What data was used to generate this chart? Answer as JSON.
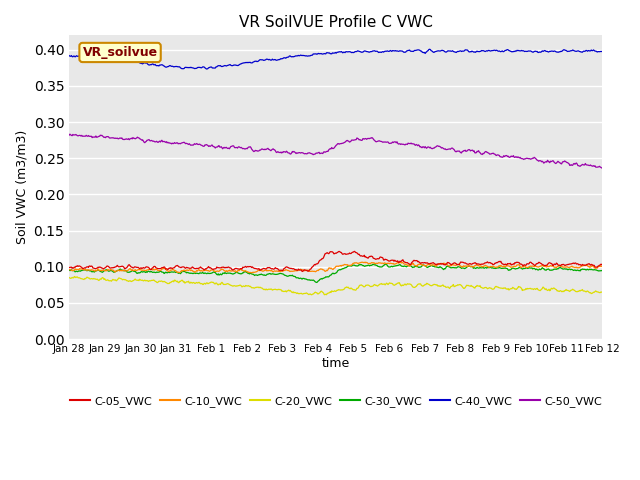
{
  "title": "VR SoilVUE Profile C VWC",
  "ylabel": "Soil VWC (m3/m3)",
  "xlabel": "time",
  "ylim": [
    0.0,
    0.42
  ],
  "yticks": [
    0.0,
    0.05,
    0.1,
    0.15,
    0.2,
    0.25,
    0.3,
    0.35,
    0.4
  ],
  "bg_color": "#e8e8e8",
  "fig_color": "#ffffff",
  "watermark_text": "VR_soilvue",
  "watermark_bg": "#ffffcc",
  "watermark_border": "#cc8800",
  "watermark_text_color": "#800000",
  "x_tick_labels": [
    "Jan 28",
    "Jan 29",
    "Jan 30",
    "Jan 31",
    "Feb 1",
    "Feb 2",
    "Feb 3",
    "Feb 4",
    "Feb 5",
    "Feb 6",
    "Feb 7",
    "Feb 8",
    "Feb 9",
    "Feb 10",
    "Feb 11",
    "Feb 12"
  ],
  "x_tick_positions": [
    0,
    1,
    2,
    3,
    4,
    5,
    6,
    7,
    8,
    9,
    10,
    11,
    12,
    13,
    14,
    15
  ],
  "series_colors": {
    "C-05_VWC": "#dd0000",
    "C-10_VWC": "#ff8800",
    "C-20_VWC": "#dddd00",
    "C-30_VWC": "#00aa00",
    "C-40_VWC": "#0000cc",
    "C-50_VWC": "#9900aa"
  },
  "legend_order": [
    "C-05_VWC",
    "C-10_VWC",
    "C-20_VWC",
    "C-30_VWC",
    "C-40_VWC",
    "C-50_VWC"
  ]
}
